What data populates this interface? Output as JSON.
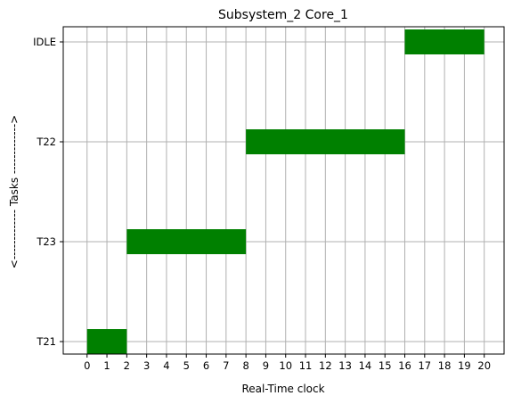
{
  "chart_data": {
    "type": "gantt",
    "title": "Subsystem_2 Core_1",
    "xlabel": "Real-Time clock",
    "ylabel": "<------------- Tasks ------------->",
    "xlim": [
      -1.2,
      21.0
    ],
    "x_ticks": [
      "0",
      "1",
      "2",
      "3",
      "4",
      "5",
      "6",
      "7",
      "8",
      "9",
      "10",
      "11",
      "12",
      "13",
      "14",
      "15",
      "16",
      "17",
      "18",
      "19",
      "20"
    ],
    "y_tasks": [
      "T21",
      "T23",
      "T22",
      "IDLE"
    ],
    "grid": true,
    "bar_color": "#008000",
    "grid_color": "#b0b0b0",
    "segments": [
      {
        "task": "T21",
        "start": 0,
        "end": 2
      },
      {
        "task": "T23",
        "start": 2,
        "end": 8
      },
      {
        "task": "T22",
        "start": 8,
        "end": 16
      },
      {
        "task": "IDLE",
        "start": 16,
        "end": 20
      }
    ]
  }
}
